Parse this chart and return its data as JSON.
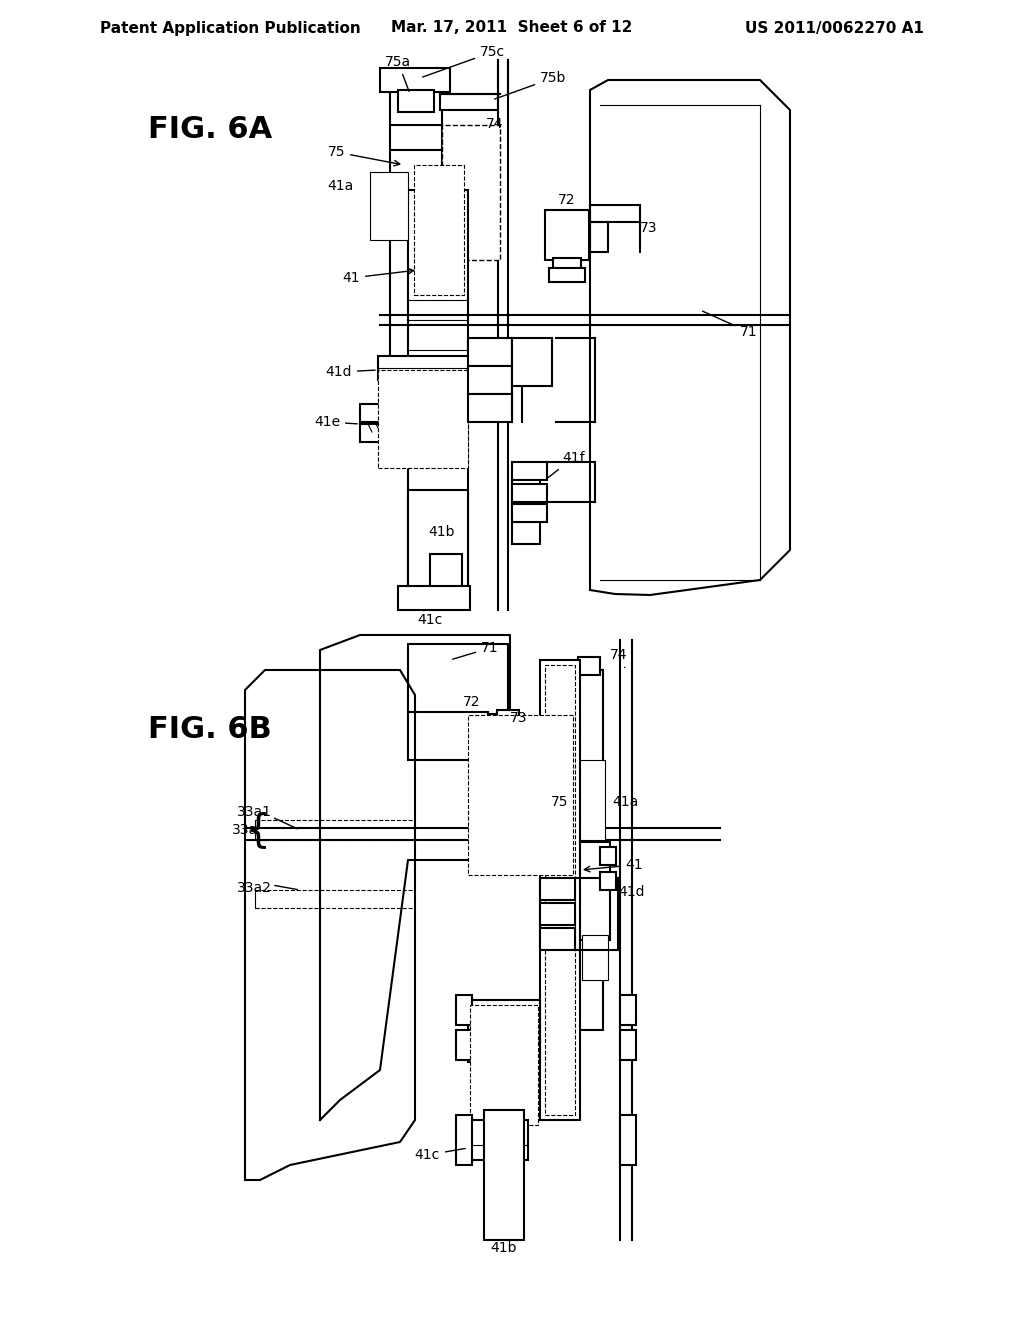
{
  "bg_color": "#ffffff",
  "header_left": "Patent Application Publication",
  "header_center": "Mar. 17, 2011  Sheet 6 of 12",
  "header_right": "US 2011/0062270 A1",
  "fig_a_label": "FIG. 6A",
  "fig_b_label": "FIG. 6B",
  "line_color": "#000000",
  "lw": 1.5,
  "lw_thin": 0.8
}
